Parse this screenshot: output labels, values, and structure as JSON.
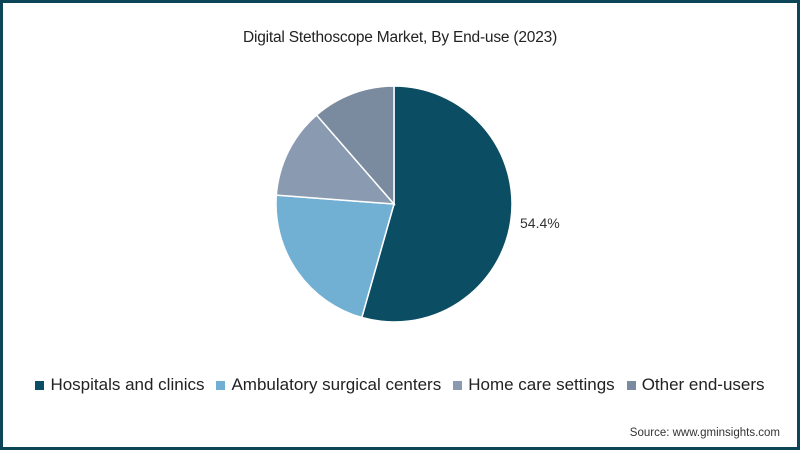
{
  "chart_data": {
    "type": "pie",
    "title": "Digital Stethoscope Market, By End-use (2023)",
    "categories": [
      "Hospitals and clinics",
      "Ambulatory surgical centers",
      "Home care settings",
      "Other end-users"
    ],
    "values": [
      54.4,
      21.8,
      12.4,
      11.4
    ],
    "colors": [
      "#0b4d63",
      "#71b0d3",
      "#8a9ab0",
      "#7a8a9f"
    ],
    "data_labels": [
      {
        "category": "Hospitals and clinics",
        "label": "54.4%"
      }
    ],
    "legend_position": "bottom",
    "start_angle_deg": 0,
    "direction": "clockwise"
  },
  "title": "Digital Stethoscope Market, By End-use (2023)",
  "data_label": "54.4%",
  "legend": [
    {
      "label": "Hospitals and clinics",
      "color": "#0b4d63"
    },
    {
      "label": "Ambulatory surgical centers",
      "color": "#71b0d3"
    },
    {
      "label": "Home care settings",
      "color": "#8a9ab0"
    },
    {
      "label": "Other end-users",
      "color": "#7a8a9f"
    }
  ],
  "source": "Source: www.gminsights.com",
  "frame_color": "#0c4558"
}
